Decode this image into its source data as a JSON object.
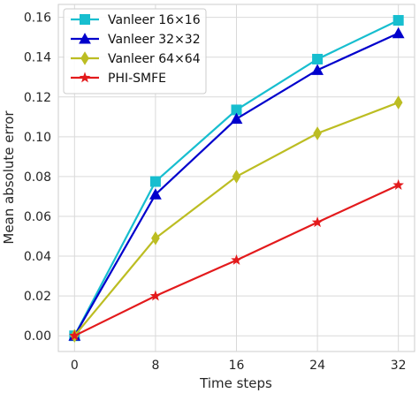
{
  "chart_data": {
    "type": "line",
    "title": "",
    "xlabel": "Time steps",
    "ylabel": "Mean absolute error",
    "x": [
      0,
      8,
      16,
      24,
      32
    ],
    "xticks": [
      "0",
      "8",
      "16",
      "24",
      "32"
    ],
    "yticks": [
      "0.00",
      "0.02",
      "0.04",
      "0.06",
      "0.08",
      "0.10",
      "0.12",
      "0.14",
      "0.16"
    ],
    "xlim": [
      -1.6,
      33.6
    ],
    "ylim": [
      -0.0079,
      0.1665
    ],
    "grid": true,
    "legend_position": "top-left",
    "series": [
      {
        "name": "Vanleer 16×16",
        "color": "#17becf",
        "marker": "square",
        "values": [
          0.0,
          0.0775,
          0.1135,
          0.139,
          0.1585
        ]
      },
      {
        "name": "Vanleer 32×32",
        "color": "#0000cc",
        "marker": "triangle",
        "values": [
          0.0,
          0.071,
          0.109,
          0.1335,
          0.152
        ]
      },
      {
        "name": "Vanleer 64×64",
        "color": "#bcbd22",
        "marker": "diamond",
        "values": [
          0.0,
          0.049,
          0.08,
          0.1017,
          0.1172
        ]
      },
      {
        "name": "PHI-SMFE",
        "color": "#e31a1c",
        "marker": "star",
        "values": [
          0.0,
          0.02,
          0.038,
          0.057,
          0.0757
        ]
      }
    ]
  }
}
